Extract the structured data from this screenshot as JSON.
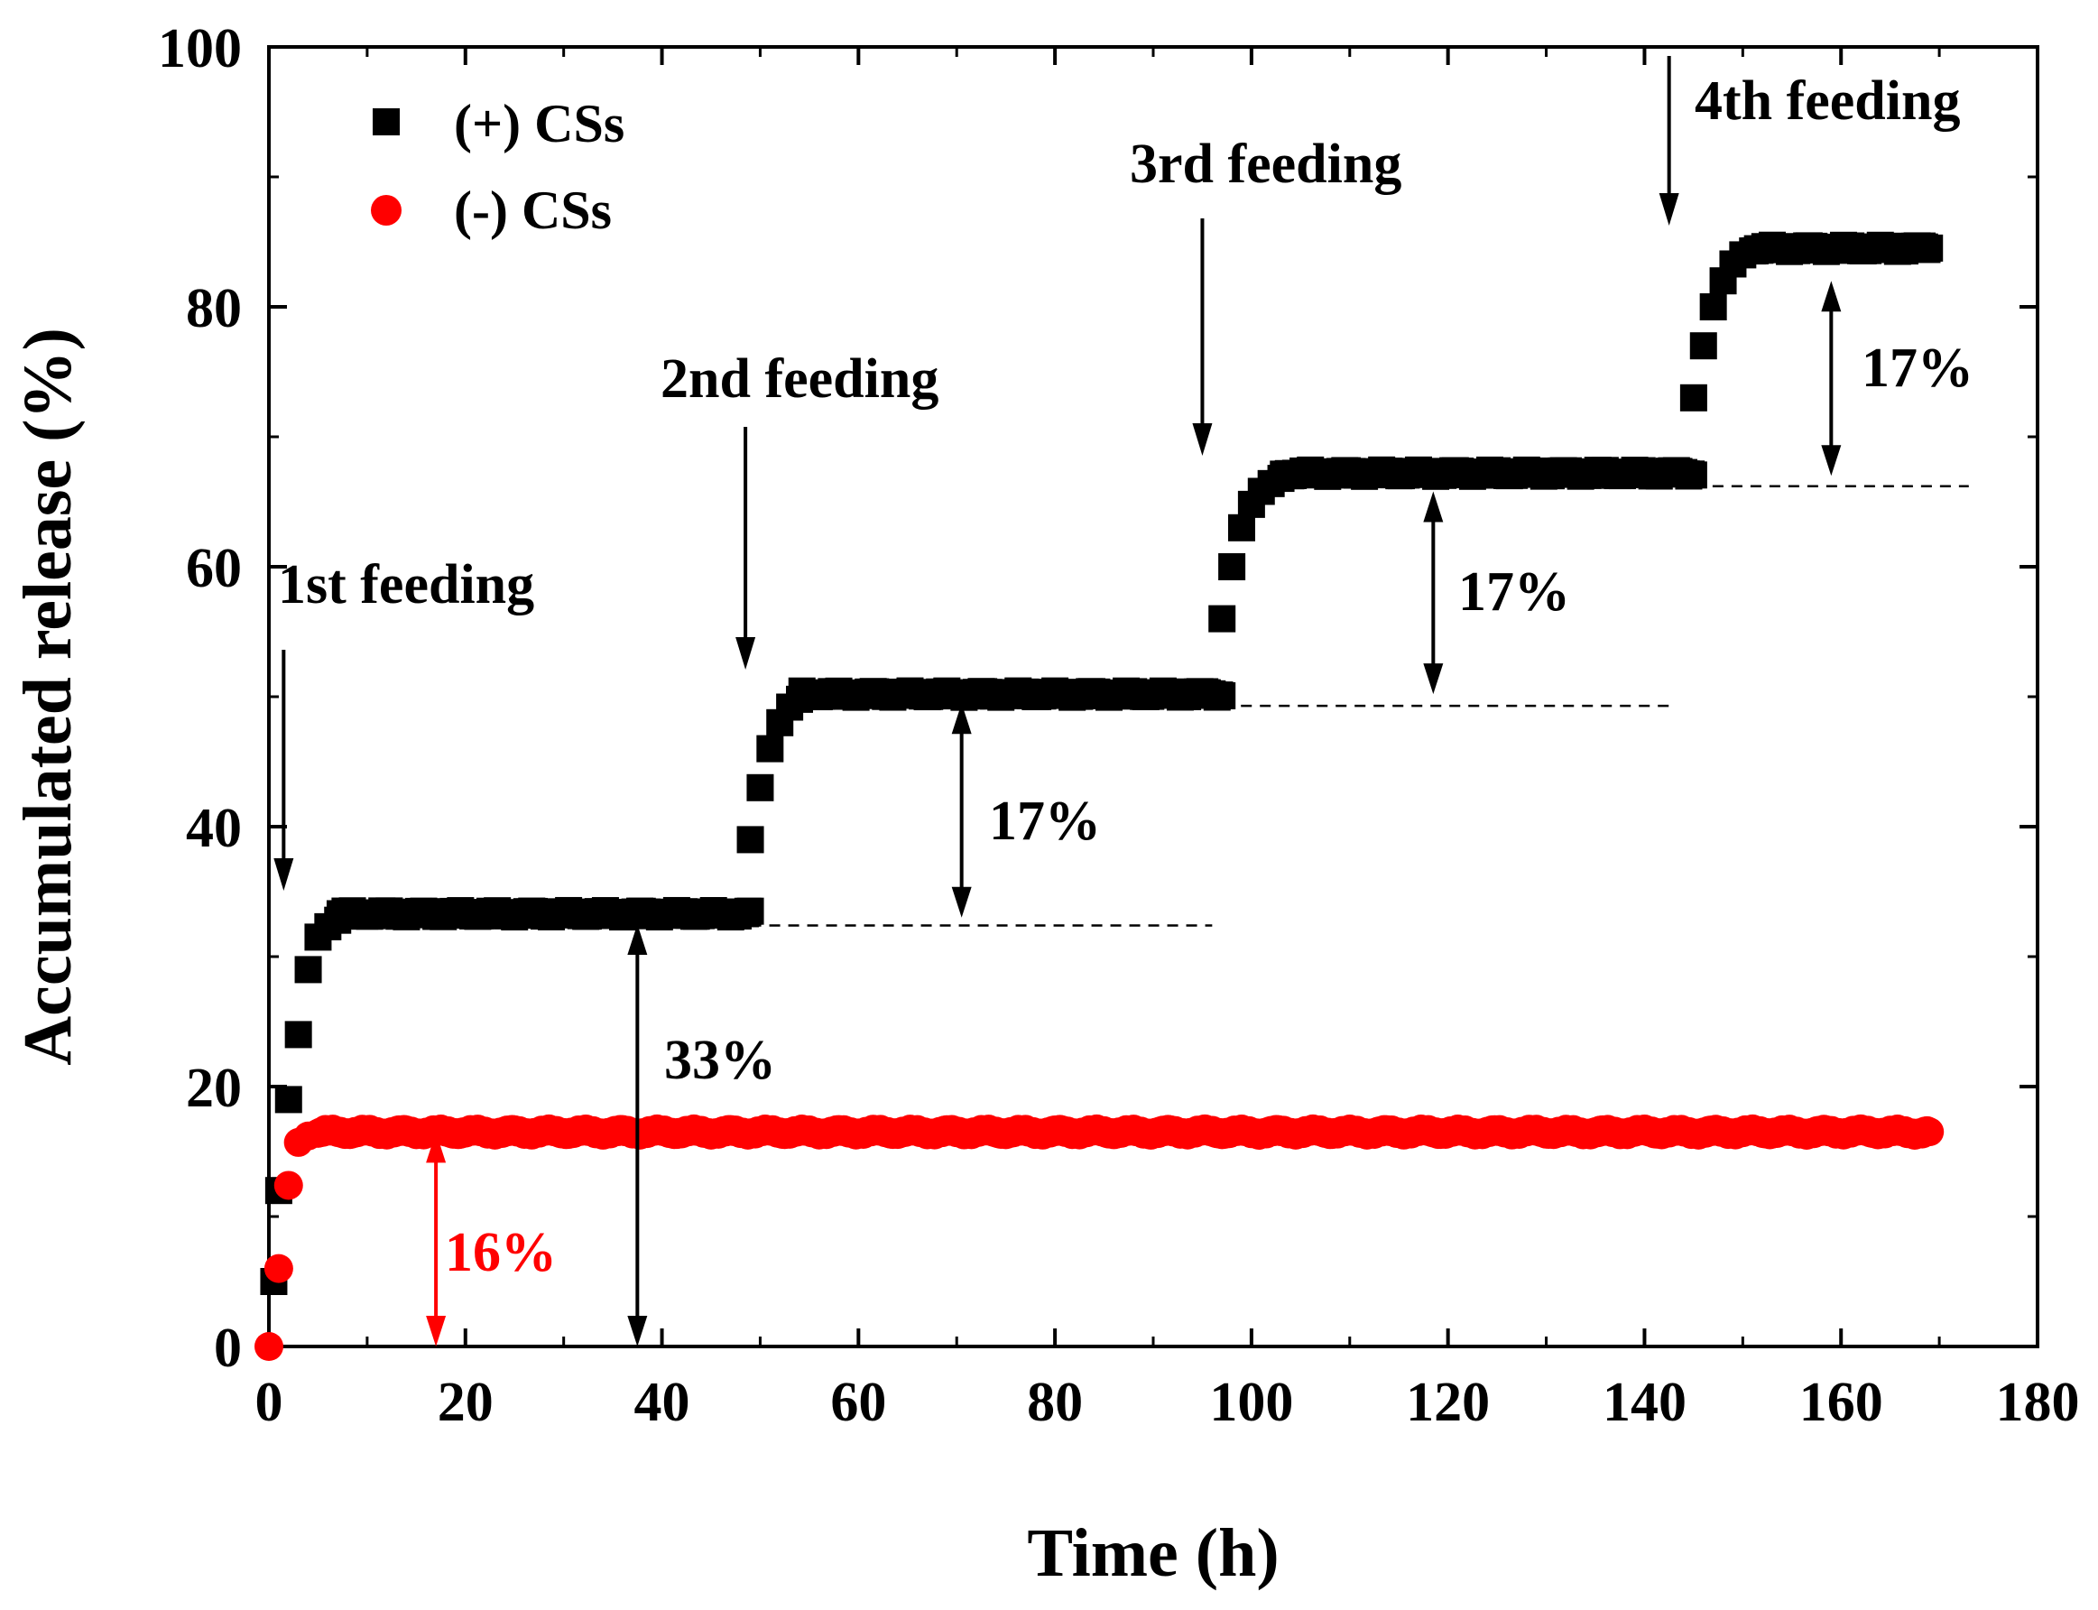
{
  "chart_data": {
    "type": "scatter",
    "title": "",
    "xlabel": "Time (h)",
    "ylabel": "Accumulated release (%)",
    "xlim": [
      0,
      180
    ],
    "ylim": [
      0,
      100
    ],
    "xticks": [
      "0",
      "20",
      "40",
      "60",
      "80",
      "100",
      "120",
      "140",
      "160",
      "180"
    ],
    "yticks": [
      "0",
      "20",
      "40",
      "60",
      "80",
      "100"
    ],
    "legend_position": "top-left",
    "series": [
      {
        "name": "(+) CSs",
        "marker": "square",
        "color": "#000000",
        "stages": [
          {
            "start": 0,
            "end": 49,
            "base": 0,
            "plateau": 33.3,
            "points": [
              [
                0.5,
                5
              ],
              [
                1,
                12
              ],
              [
                2,
                19
              ],
              [
                3,
                24
              ],
              [
                4,
                29
              ],
              [
                5,
                31.5
              ],
              [
                6,
                32.3
              ],
              [
                7,
                32.8
              ]
            ]
          },
          {
            "start": 49,
            "end": 97,
            "base": 33.3,
            "plateau": 50.2,
            "points": [
              [
                49,
                39
              ],
              [
                50,
                43
              ],
              [
                51,
                46
              ],
              [
                52,
                48
              ],
              [
                53,
                49.2
              ],
              [
                54,
                49.8
              ]
            ]
          },
          {
            "start": 97,
            "end": 145,
            "base": 50.2,
            "plateau": 67.2,
            "points": [
              [
                97,
                56
              ],
              [
                98,
                60
              ],
              [
                99,
                63
              ],
              [
                100,
                64.8
              ],
              [
                101,
                65.8
              ],
              [
                102,
                66.4
              ],
              [
                103,
                66.8
              ]
            ]
          },
          {
            "start": 145,
            "end": 169,
            "base": 67.2,
            "plateau": 84.5,
            "points": [
              [
                145,
                73
              ],
              [
                146,
                77
              ],
              [
                147,
                80
              ],
              [
                148,
                82
              ],
              [
                149,
                83.3
              ],
              [
                150,
                84
              ],
              [
                151,
                84.3
              ]
            ]
          }
        ]
      },
      {
        "name": "(-) CSs",
        "marker": "circle",
        "color": "#ff0000",
        "stages": [
          {
            "start": 0,
            "end": 169,
            "base": 0,
            "plateau": 16.5,
            "points": [
              [
                0,
                0
              ],
              [
                1,
                6
              ],
              [
                2,
                12.4
              ],
              [
                3,
                15.7
              ],
              [
                4,
                16.2
              ],
              [
                5,
                16.4
              ]
            ]
          }
        ]
      }
    ],
    "feeding_annotations": [
      {
        "label": "1st feeding",
        "time": 1.5
      },
      {
        "label": "2nd feeding",
        "time": 48.5
      },
      {
        "label": "3rd feeding",
        "time": 95
      },
      {
        "label": "4th feeding",
        "time": 142.5
      }
    ],
    "release_annotations": [
      {
        "label": "16%",
        "color": "#ff0000",
        "x": 17,
        "y_from": 0,
        "y_to": 16.5
      },
      {
        "label": "33%",
        "color": "#000000",
        "x": 37.5,
        "y_from": 0,
        "y_to": 32.5
      },
      {
        "label": "17%",
        "color": "#000000",
        "x": 70.5,
        "y_from": 33,
        "y_to": 49.5
      },
      {
        "label": "17%",
        "color": "#000000",
        "x": 118.5,
        "y_from": 50.2,
        "y_to": 65.8
      },
      {
        "label": "17%",
        "color": "#000000",
        "x": 159,
        "y_from": 67,
        "y_to": 82
      }
    ],
    "reference_lines": [
      {
        "y": 32.4,
        "x_from": 49,
        "x_to": 96
      },
      {
        "y": 49.3,
        "x_from": 97,
        "x_to": 143
      },
      {
        "y": 66.2,
        "x_from": 145,
        "x_to": 173
      }
    ]
  }
}
